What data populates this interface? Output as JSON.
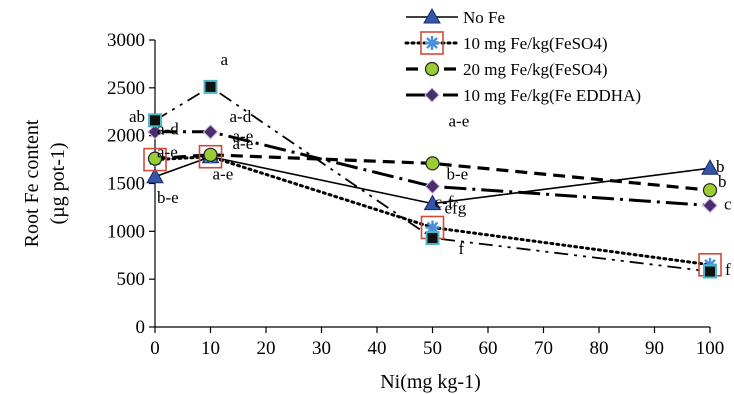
{
  "chart_data": {
    "type": "line",
    "title": "",
    "xlabel": "Ni(mg kg-1)",
    "ylabel": "Root Fe content (µg pot-1)",
    "ylabel_lines": [
      "Root Fe content",
      "(µg pot-1)"
    ],
    "xlim": [
      0,
      100
    ],
    "ylim": [
      0,
      3000
    ],
    "xticks": [
      0,
      10,
      20,
      30,
      40,
      50,
      60,
      70,
      80,
      90,
      100
    ],
    "yticks": [
      0,
      500,
      1000,
      1500,
      2000,
      2500,
      3000
    ],
    "legend_position": "top-right",
    "grid": false,
    "series": [
      {
        "name": "No Fe",
        "x": [
          0,
          10,
          50,
          100
        ],
        "y": [
          1570,
          1780,
          1290,
          1660
        ],
        "line_style": "solid",
        "marker": "triangle",
        "marker_fill": "#3355aa",
        "labels": [
          "b-e",
          "a-e",
          "c-f",
          "b"
        ]
      },
      {
        "name": "10 mg Fe/kg(FeSO4)",
        "x": [
          0,
          10,
          50,
          100
        ],
        "y": [
          1750,
          1780,
          1040,
          650
        ],
        "line_style": "dotted",
        "marker": "square-star",
        "marker_fill": "#c8452f",
        "labels": [
          "a-e",
          "a-e",
          "efg",
          "f"
        ]
      },
      {
        "name": "20 mg Fe/kg(FeSO4)",
        "x": [
          0,
          10,
          50,
          100
        ],
        "y": [
          1760,
          1800,
          1710,
          1430
        ],
        "line_style": "dashed",
        "marker": "circle",
        "marker_fill": "#9acd32",
        "labels": [
          "a-d",
          "a-e",
          "a-e",
          "b"
        ]
      },
      {
        "name": "10 mg Fe/kg(Fe EDDHA)",
        "x": [
          0,
          10,
          50,
          100
        ],
        "y": [
          2040,
          2040,
          1470,
          1270
        ],
        "line_style": "long-dash-dot",
        "marker": "diamond",
        "marker_fill": "#4b2d6e",
        "labels": [
          "ab",
          "a-d",
          "b-e",
          "c"
        ]
      },
      {
        "x": [
          0,
          10,
          50,
          100
        ],
        "y": [
          2160,
          2510,
          930,
          580
        ],
        "line_style": "dash-dot",
        "marker": "square",
        "marker_fill": "#111111",
        "marker_stroke": "#4db8c8",
        "labels": [
          "",
          "a",
          "f",
          ""
        ]
      }
    ]
  }
}
